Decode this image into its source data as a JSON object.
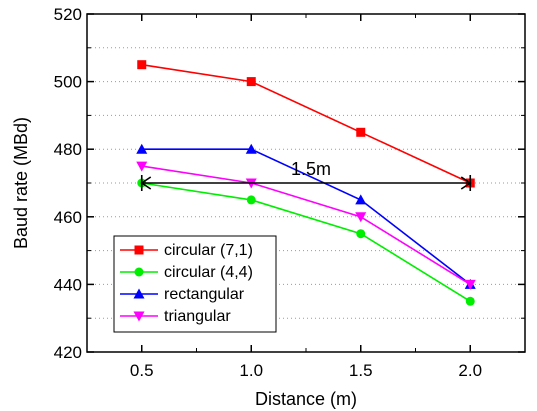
{
  "chart_data": {
    "type": "line",
    "title": "",
    "xlabel": "Distance (m)",
    "ylabel": "Baud rate (MBd)",
    "x": [
      0.5,
      1.0,
      1.5,
      2.0
    ],
    "x_tick_labels": [
      "0.5",
      "1.0",
      "1.5",
      "2.0"
    ],
    "xlim": [
      0.25,
      2.25
    ],
    "ylim": [
      420,
      520
    ],
    "y_ticks": [
      420,
      440,
      460,
      480,
      500,
      520
    ],
    "grid": "horizontal dotted",
    "legend_position": "bottom-left",
    "series": [
      {
        "name": "circular (7,1)",
        "values": [
          505,
          500,
          485,
          470
        ],
        "color": "#ff0000",
        "marker": "square"
      },
      {
        "name": "circular (4,4)",
        "values": [
          470,
          465,
          455,
          435
        ],
        "color": "#00ee00",
        "marker": "circle"
      },
      {
        "name": "rectangular",
        "values": [
          480,
          480,
          465,
          440
        ],
        "color": "#0000ff",
        "marker": "triangle-up"
      },
      {
        "name": "triangular",
        "values": [
          475,
          470,
          460,
          440
        ],
        "color": "#ff00ff",
        "marker": "triangle-down"
      }
    ],
    "annotations": [
      {
        "label": "1.5m",
        "x_from": 0.5,
        "x_to": 2.0,
        "y": 470,
        "style": "double-arrow"
      }
    ]
  }
}
